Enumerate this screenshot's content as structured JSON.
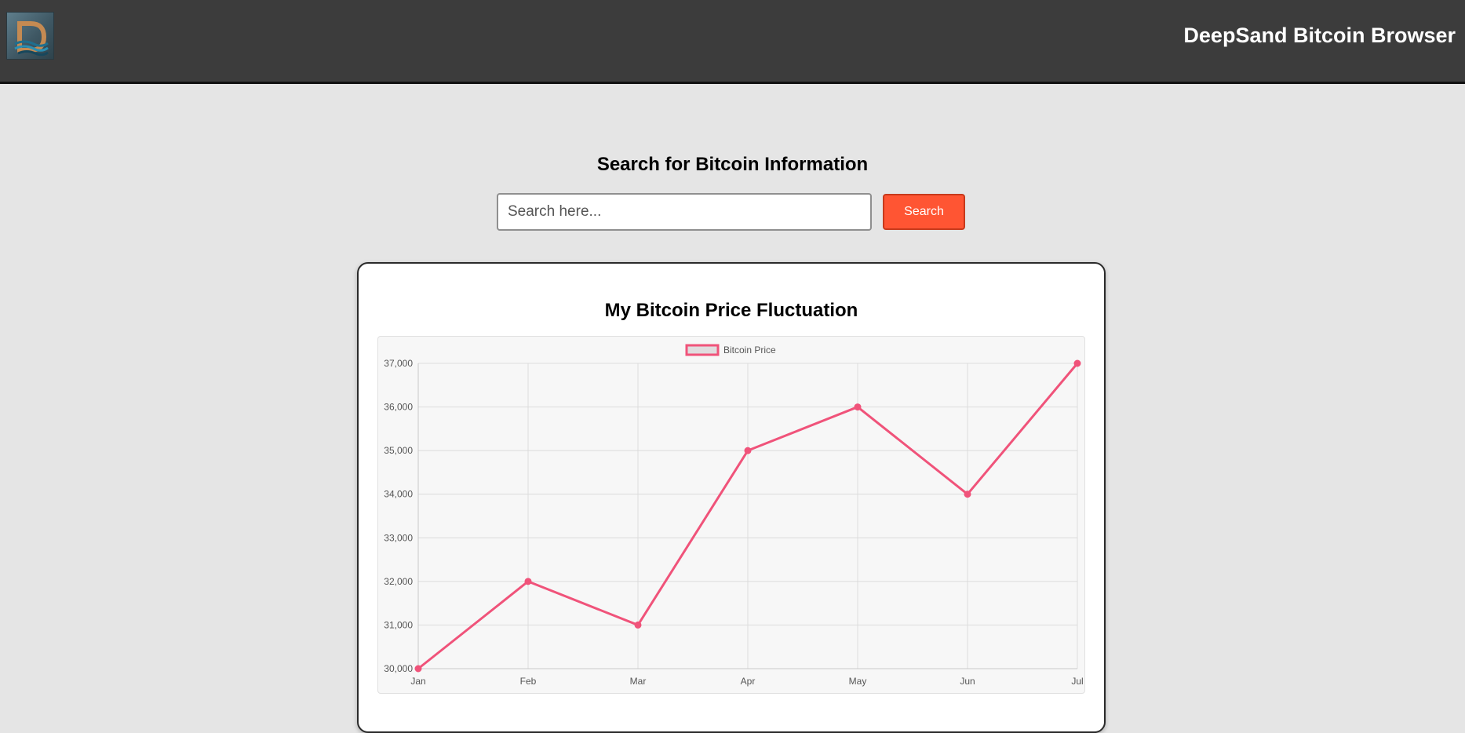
{
  "header": {
    "logo_alt": "D",
    "title": "DeepSand Bitcoin Browser"
  },
  "search": {
    "heading": "Search for Bitcoin Information",
    "placeholder": "Search here...",
    "value": "",
    "button_label": "Search"
  },
  "card": {
    "title": "My Bitcoin Price Fluctuation"
  },
  "colors": {
    "header_bg": "#3c3c3c",
    "accent": "#ff5533",
    "series": "#f0537a"
  },
  "chart_data": {
    "type": "line",
    "categories": [
      "Jan",
      "Feb",
      "Mar",
      "Apr",
      "May",
      "Jun",
      "Jul"
    ],
    "series": [
      {
        "name": "Bitcoin Price",
        "values": [
          30000,
          32000,
          31000,
          35000,
          36000,
          34000,
          37000
        ]
      }
    ],
    "yticks": [
      "30,000",
      "31,000",
      "32,000",
      "33,000",
      "34,000",
      "35,000",
      "36,000",
      "37,000"
    ],
    "ylim": [
      30000,
      37000
    ],
    "grid": true,
    "legend": "top-center"
  }
}
